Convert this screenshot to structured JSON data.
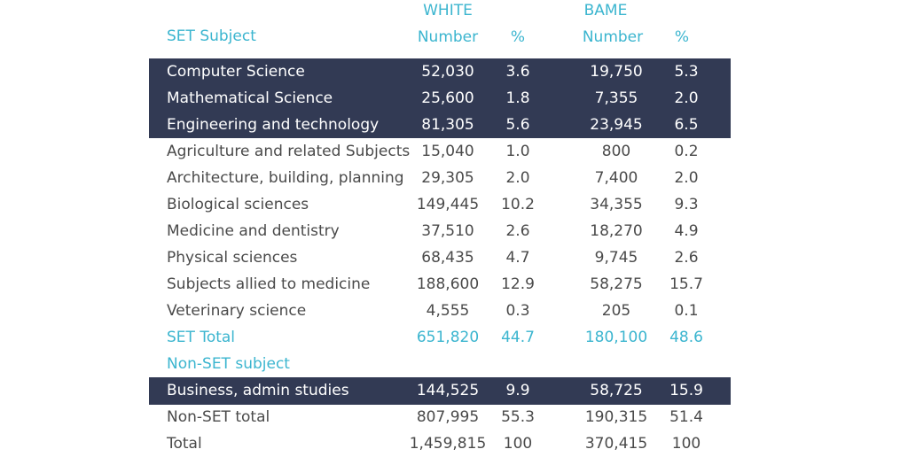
{
  "header": {
    "white_group": "WHITE",
    "bame_group": "BAME",
    "subject_label": "SET Subject",
    "white_number": "Number",
    "white_percent": "%",
    "bame_number": "Number",
    "bame_percent": "%"
  },
  "colors": {
    "accent": "#3bb5cf",
    "dark_band": "#323a54",
    "text": "#4a4a4a"
  },
  "rows": [
    {
      "label": "Computer Science",
      "white_number": "52,030",
      "white_percent": "3.6",
      "bame_number": "19,750",
      "bame_percent": "5.3",
      "style": "dark"
    },
    {
      "label": "Mathematical Science",
      "white_number": "25,600",
      "white_percent": "1.8",
      "bame_number": "7,355",
      "bame_percent": "2.0",
      "style": "dark"
    },
    {
      "label": "Engineering and technology",
      "white_number": "81,305",
      "white_percent": "5.6",
      "bame_number": "23,945",
      "bame_percent": "6.5",
      "style": "dark"
    },
    {
      "label": "Agriculture and related Subjects",
      "white_number": "15,040",
      "white_percent": "1.0",
      "bame_number": "800",
      "bame_percent": "0.2",
      "style": "plain"
    },
    {
      "label": "Architecture, building, planning",
      "white_number": "29,305",
      "white_percent": "2.0",
      "bame_number": "7,400",
      "bame_percent": "2.0",
      "style": "plain"
    },
    {
      "label": "Biological sciences",
      "white_number": "149,445",
      "white_percent": "10.2",
      "bame_number": "34,355",
      "bame_percent": "9.3",
      "style": "plain"
    },
    {
      "label": "Medicine and dentistry",
      "white_number": "37,510",
      "white_percent": "2.6",
      "bame_number": "18,270",
      "bame_percent": "4.9",
      "style": "plain"
    },
    {
      "label": "Physical sciences",
      "white_number": "68,435",
      "white_percent": "4.7",
      "bame_number": "9,745",
      "bame_percent": "2.6",
      "style": "plain"
    },
    {
      "label": "Subjects allied to medicine",
      "white_number": "188,600",
      "white_percent": "12.9",
      "bame_number": "58,275",
      "bame_percent": "15.7",
      "style": "plain"
    },
    {
      "label": "Veterinary science",
      "white_number": "4,555",
      "white_percent": "0.3",
      "bame_number": "205",
      "bame_percent": "0.1",
      "style": "plain"
    },
    {
      "label": "SET Total",
      "white_number": "651,820",
      "white_percent": "44.7",
      "bame_number": "180,100",
      "bame_percent": "48.6",
      "style": "accent"
    },
    {
      "label": "Non-SET subject",
      "white_number": "",
      "white_percent": "",
      "bame_number": "",
      "bame_percent": "",
      "style": "accent"
    },
    {
      "label": "Business, admin studies",
      "white_number": "144,525",
      "white_percent": "9.9",
      "bame_number": "58,725",
      "bame_percent": "15.9",
      "style": "dark"
    },
    {
      "label": "Non-SET total",
      "white_number": "807,995",
      "white_percent": "55.3",
      "bame_number": "190,315",
      "bame_percent": "51.4",
      "style": "plain"
    },
    {
      "label": "Total",
      "white_number": "1,459,815",
      "white_percent": "100",
      "bame_number": "370,415",
      "bame_percent": "100",
      "style": "plain"
    }
  ]
}
